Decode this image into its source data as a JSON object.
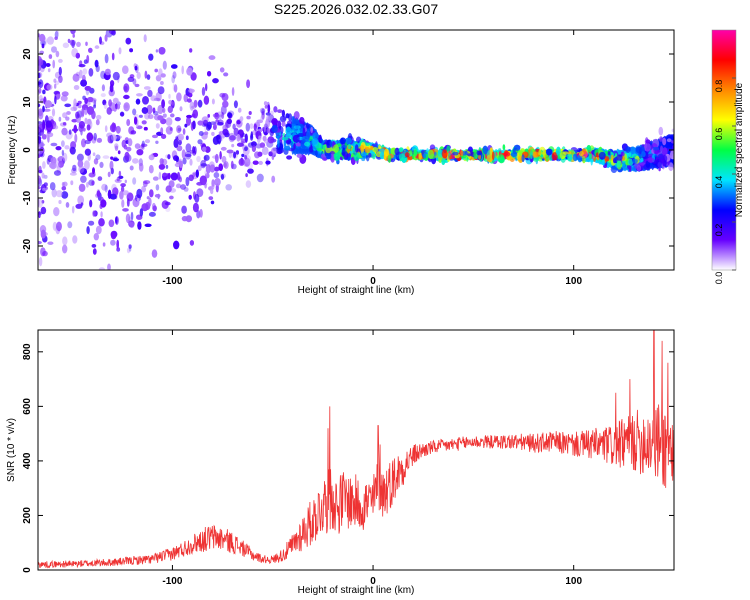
{
  "title": "S225.2026.032.02.33.G07",
  "chart_data": [
    {
      "type": "heatmap",
      "title": "S225.2026.032.02.33.G07",
      "xlabel": "Height of straight line (km)",
      "ylabel": "Frequency (Hz)",
      "xlim": [
        -167,
        150
      ],
      "ylim": [
        -25,
        25
      ],
      "xticks": [
        -100,
        0,
        100
      ],
      "xtick_labels": [
        "-100",
        "0",
        "100"
      ],
      "yticks": [
        -20,
        -10,
        0,
        10,
        20
      ],
      "ytick_labels": [
        "-20",
        "-10",
        "0",
        "10",
        "20"
      ],
      "colorbar": {
        "label": "Normalized spectral amplitude",
        "range": [
          0,
          1
        ],
        "ticks": [
          0.0,
          0.2,
          0.4,
          0.6,
          0.8
        ],
        "tick_labels": [
          "0.0",
          "0.2",
          "0.4",
          "0.6",
          "0.8"
        ],
        "colormap": [
          "#ffffff",
          "#6600ff",
          "#0000ff",
          "#00e5ff",
          "#00ff44",
          "#ffff00",
          "#ff8800",
          "#ff0000",
          "#ff00aa"
        ]
      },
      "ridge": {
        "x": [
          -167,
          -150,
          -130,
          -110,
          -100,
          -90,
          -80,
          -70,
          -60,
          -50,
          -40,
          -30,
          -25,
          -20,
          -10,
          0,
          10,
          20,
          40,
          60,
          80,
          100,
          110,
          120,
          130,
          140,
          150
        ],
        "y": [
          6,
          5,
          3,
          2,
          2,
          1,
          1,
          2,
          3,
          3,
          3,
          2,
          0,
          0,
          0,
          0,
          -1,
          -1,
          -1,
          -1,
          -1,
          -1,
          -1,
          -2,
          -2,
          -1,
          0
        ],
        "amplitude": [
          0.05,
          0.08,
          0.12,
          0.18,
          0.22,
          0.24,
          0.25,
          0.26,
          0.28,
          0.32,
          0.5,
          0.45,
          0.55,
          0.6,
          0.7,
          0.85,
          0.92,
          0.95,
          0.97,
          0.97,
          0.95,
          0.93,
          0.9,
          0.8,
          0.6,
          0.35,
          0.25
        ],
        "scatter_width_hz": [
          25,
          25,
          25,
          22,
          18,
          14,
          12,
          10,
          8,
          6,
          4,
          3,
          2,
          2,
          2,
          1.5,
          1,
          1,
          1,
          1,
          1,
          1,
          1.5,
          2,
          2.5,
          3,
          3.5
        ]
      }
    },
    {
      "type": "line",
      "xlabel": "Height of straight line (km)",
      "ylabel": "SNR (10 * v/v)",
      "xlim": [
        -167,
        150
      ],
      "ylim": [
        0,
        880
      ],
      "xticks": [
        -100,
        0,
        100
      ],
      "xtick_labels": [
        "-100",
        "0",
        "100"
      ],
      "yticks": [
        0,
        200,
        400,
        600,
        800
      ],
      "ytick_labels": [
        "0",
        "200",
        "400",
        "600",
        "800"
      ],
      "color": "#ee3333",
      "series": [
        {
          "x": [
            -167,
            -150,
            -130,
            -110,
            -100,
            -95,
            -90,
            -85,
            -80,
            -75,
            -70,
            -65,
            -60,
            -55,
            -50,
            -45,
            -40,
            -35,
            -30,
            -25,
            -22,
            -20,
            -18,
            -15,
            -10,
            -5,
            0,
            3,
            5,
            10,
            15,
            20,
            25,
            30,
            40,
            50,
            60,
            70,
            80,
            90,
            100,
            110,
            120,
            130,
            140,
            150
          ],
          "y": [
            20,
            22,
            28,
            40,
            60,
            75,
            95,
            110,
            120,
            115,
            100,
            80,
            55,
            40,
            38,
            55,
            90,
            140,
            180,
            240,
            250,
            270,
            230,
            260,
            250,
            240,
            250,
            320,
            280,
            330,
            380,
            420,
            440,
            450,
            460,
            470,
            470,
            470,
            465,
            470,
            460,
            460,
            455,
            470,
            480,
            430
          ],
          "spread": [
            12,
            12,
            14,
            18,
            25,
            30,
            35,
            45,
            50,
            45,
            40,
            30,
            22,
            15,
            15,
            25,
            45,
            70,
            90,
            110,
            120,
            120,
            110,
            110,
            105,
            100,
            100,
            110,
            100,
            90,
            70,
            40,
            30,
            25,
            25,
            25,
            25,
            30,
            35,
            40,
            45,
            60,
            80,
            110,
            150,
            180
          ]
        }
      ],
      "spikes": [
        {
          "x": -21.5,
          "y": 600
        },
        {
          "x": -22.5,
          "y": 520
        },
        {
          "x": 2.5,
          "y": 530
        },
        {
          "x": 3.5,
          "y": 460
        },
        {
          "x": 140,
          "y": 880
        },
        {
          "x": 144,
          "y": 840
        },
        {
          "x": 147,
          "y": 760
        },
        {
          "x": 128,
          "y": 700
        },
        {
          "x": 121,
          "y": 650
        }
      ]
    }
  ]
}
